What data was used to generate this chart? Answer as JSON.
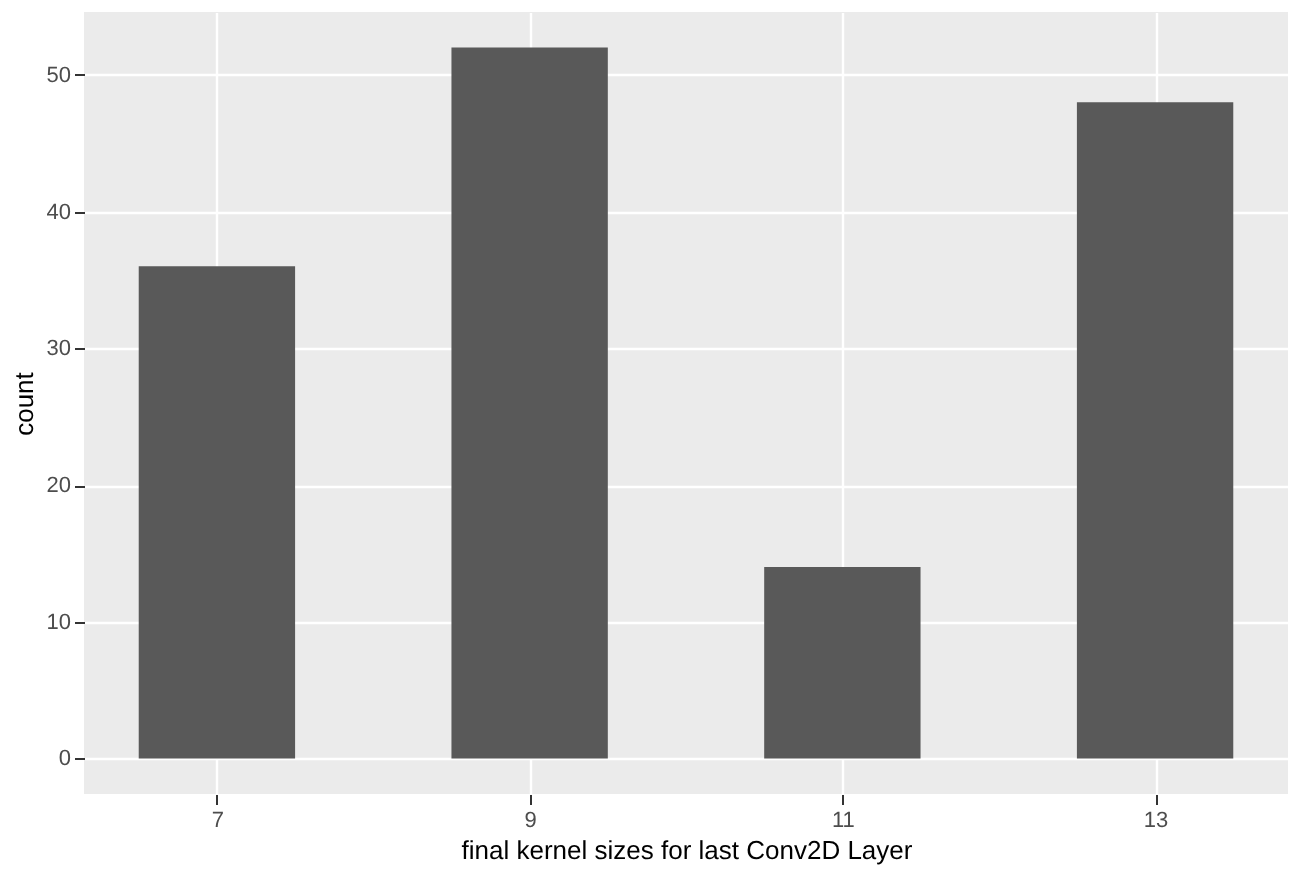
{
  "chart_data": {
    "type": "histogram",
    "xlabel": "final kernel sizes for last Conv2D Layer",
    "ylabel": "count",
    "bins": [
      6.5,
      7.5,
      8.5,
      9.5,
      10.5,
      11.5,
      12.5,
      13.5
    ],
    "values": [
      36,
      0,
      52,
      0,
      14,
      0,
      48
    ],
    "color": "#595959",
    "xlim": [
      6.15,
      13.85
    ],
    "xticks": [
      7,
      9,
      11,
      13
    ],
    "ylim": [
      -2.6,
      54.6
    ],
    "yticks": [
      0,
      10,
      20,
      30,
      40,
      50
    ],
    "grid": true
  }
}
